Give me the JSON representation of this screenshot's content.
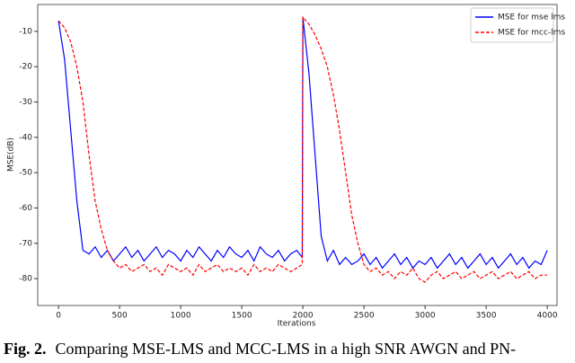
{
  "chart_data": {
    "type": "line",
    "x_label": "Iterations",
    "y_label": "MSE(dB)",
    "x": [
      0,
      50,
      100,
      150,
      200,
      250,
      300,
      350,
      400,
      450,
      500,
      550,
      600,
      650,
      700,
      750,
      800,
      850,
      900,
      950,
      1000,
      1050,
      1100,
      1150,
      1200,
      1250,
      1300,
      1350,
      1400,
      1450,
      1500,
      1550,
      1600,
      1650,
      1700,
      1750,
      1800,
      1850,
      1900,
      1950,
      1995,
      2000,
      2050,
      2100,
      2150,
      2200,
      2250,
      2300,
      2350,
      2400,
      2450,
      2500,
      2550,
      2600,
      2650,
      2700,
      2750,
      2800,
      2850,
      2900,
      2950,
      3000,
      3050,
      3100,
      3150,
      3200,
      3250,
      3300,
      3350,
      3400,
      3450,
      3500,
      3550,
      3600,
      3650,
      3700,
      3750,
      3800,
      3850,
      3900,
      3950,
      4000
    ],
    "series": [
      {
        "name": "MSE for mse lms",
        "color": "#0000ff",
        "dash": false,
        "values": [
          -7,
          -18,
          -38,
          -58,
          -72,
          -73,
          -71,
          -74,
          -72,
          -75,
          -73,
          -71,
          -74,
          -72,
          -75,
          -73,
          -71,
          -74,
          -72,
          -73,
          -75,
          -72,
          -74,
          -71,
          -73,
          -75,
          -72,
          -74,
          -71,
          -73,
          -74,
          -72,
          -75,
          -71,
          -73,
          -74,
          -72,
          -75,
          -73,
          -72,
          -74,
          -6,
          -22,
          -45,
          -68,
          -75,
          -72,
          -76,
          -74,
          -76,
          -75,
          -73,
          -76,
          -74,
          -77,
          -75,
          -73,
          -76,
          -74,
          -77,
          -75,
          -76,
          -74,
          -77,
          -75,
          -73,
          -76,
          -74,
          -77,
          -75,
          -73,
          -76,
          -74,
          -77,
          -75,
          -73,
          -76,
          -74,
          -77,
          -75,
          -76,
          -72
        ]
      },
      {
        "name": "MSE for mcc-lms",
        "color": "#ff0000",
        "dash": true,
        "values": [
          -7,
          -9,
          -13,
          -20,
          -30,
          -45,
          -58,
          -66,
          -72,
          -75,
          -77,
          -76,
          -78,
          -77,
          -76,
          -78,
          -77,
          -79,
          -76,
          -77,
          -78,
          -77,
          -79,
          -76,
          -78,
          -77,
          -76,
          -78,
          -77,
          -78,
          -77,
          -79,
          -76,
          -78,
          -77,
          -78,
          -76,
          -77,
          -78,
          -77,
          -76,
          -6,
          -8,
          -11,
          -15,
          -20,
          -28,
          -38,
          -50,
          -62,
          -70,
          -76,
          -78,
          -77,
          -79,
          -78,
          -80,
          -78,
          -79,
          -77,
          -80,
          -81,
          -79,
          -78,
          -80,
          -79,
          -78,
          -80,
          -79,
          -78,
          -80,
          -79,
          -78,
          -80,
          -79,
          -78,
          -80,
          -79,
          -78,
          -80,
          -79,
          -79
        ]
      }
    ],
    "xlim": [
      -170,
      4080
    ],
    "xticks": [
      0,
      500,
      1000,
      1500,
      2000,
      2500,
      3000,
      3500,
      4000
    ],
    "ylim": [
      -87.6,
      -2.4
    ],
    "yticks": [
      -80,
      -70,
      -60,
      -50,
      -40,
      -30,
      -20,
      -10
    ],
    "legend": "upper right",
    "grid": false
  },
  "caption": {
    "label": "Fig. 2.",
    "text": "Comparing MSE-LMS and MCC-LMS in a high SNR AWGN and PN-"
  }
}
